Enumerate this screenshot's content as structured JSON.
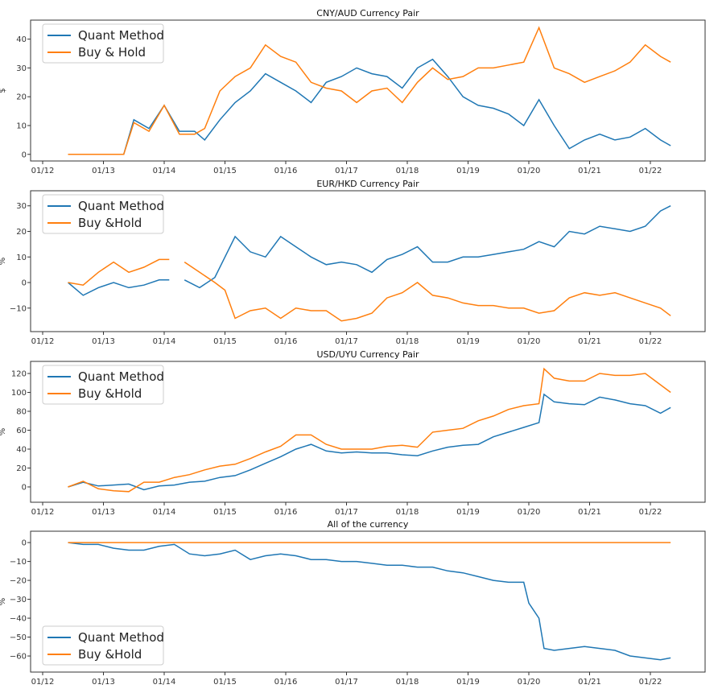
{
  "chart_data": [
    {
      "type": "line",
      "title": "CNY/AUD Currency Pair",
      "xlabel": "",
      "ylabel": "$",
      "ylim": [
        -2.3,
        46.6
      ],
      "yticks": [
        0,
        10,
        20,
        30,
        40
      ],
      "xticks": [
        "01/12",
        "01/13",
        "01/14",
        "01/15",
        "01/16",
        "01/17",
        "01/18",
        "01/19",
        "01/20",
        "01/21",
        "01/22"
      ],
      "legend_position": "top-left",
      "grid": false,
      "x": [
        "2012-06",
        "2013-05",
        "2013-07",
        "2013-10",
        "2014-01",
        "2014-04",
        "2014-07",
        "2014-09",
        "2014-12",
        "2015-03",
        "2015-06",
        "2015-09",
        "2015-12",
        "2016-03",
        "2016-06",
        "2016-09",
        "2016-12",
        "2017-03",
        "2017-06",
        "2017-09",
        "2017-12",
        "2018-03",
        "2018-06",
        "2018-09",
        "2018-12",
        "2019-03",
        "2019-06",
        "2019-09",
        "2019-12",
        "2020-03",
        "2020-06",
        "2020-09",
        "2020-12",
        "2021-03",
        "2021-06",
        "2021-09",
        "2021-12",
        "2022-03",
        "2022-05"
      ],
      "series": [
        {
          "name": "Quant Method",
          "color": "#1f77b4",
          "values": [
            0,
            0,
            12,
            9,
            17,
            8,
            8,
            5,
            12,
            18,
            22,
            28,
            25,
            22,
            18,
            25,
            27,
            30,
            28,
            27,
            23,
            30,
            33,
            27,
            20,
            17,
            16,
            14,
            10,
            19,
            10,
            2,
            5,
            7,
            5,
            6,
            9,
            5,
            3
          ]
        },
        {
          "name": "Buy & Hold",
          "color": "#ff7f0e",
          "values": [
            0,
            0,
            11,
            8,
            17,
            7,
            7,
            9,
            22,
            27,
            30,
            38,
            34,
            32,
            25,
            23,
            22,
            18,
            22,
            23,
            18,
            25,
            30,
            26,
            27,
            30,
            30,
            31,
            32,
            44,
            30,
            28,
            25,
            27,
            29,
            32,
            38,
            34,
            32
          ]
        }
      ]
    },
    {
      "type": "line",
      "title": "EUR/HKD Currency Pair",
      "xlabel": "",
      "ylabel": "%",
      "ylim": [
        -19.2,
        35.9
      ],
      "yticks": [
        -10,
        0,
        10,
        20,
        30
      ],
      "xticks": [
        "01/12",
        "01/13",
        "01/14",
        "01/15",
        "01/16",
        "01/17",
        "01/18",
        "01/19",
        "01/20",
        "01/21",
        "01/22"
      ],
      "legend_position": "top-left",
      "grid": false,
      "x": [
        "2012-06",
        "2012-09",
        "2012-12",
        "2013-03",
        "2013-06",
        "2013-09",
        "2013-12",
        "2014-02",
        "2014-04",
        "2014-05",
        "2014-08",
        "2014-11",
        "2015-01",
        "2015-03",
        "2015-06",
        "2015-09",
        "2015-12",
        "2016-03",
        "2016-06",
        "2016-09",
        "2016-12",
        "2017-03",
        "2017-06",
        "2017-09",
        "2017-12",
        "2018-03",
        "2018-06",
        "2018-09",
        "2018-12",
        "2019-03",
        "2019-06",
        "2019-09",
        "2019-12",
        "2020-03",
        "2020-06",
        "2020-09",
        "2020-12",
        "2021-03",
        "2021-06",
        "2021-09",
        "2021-12",
        "2022-03",
        "2022-05"
      ],
      "series": [
        {
          "name": "Quant Method",
          "color": "#1f77b4",
          "values": [
            0,
            -5,
            -2,
            0,
            -2,
            -1,
            1,
            1,
            null,
            1,
            -2,
            2,
            10,
            18,
            12,
            10,
            18,
            14,
            10,
            7,
            8,
            7,
            4,
            9,
            11,
            14,
            8,
            8,
            10,
            10,
            11,
            12,
            13,
            16,
            14,
            20,
            19,
            22,
            21,
            20,
            22,
            28,
            30
          ]
        },
        {
          "name": "Buy &Hold",
          "color": "#ff7f0e",
          "values": [
            0,
            -1,
            4,
            8,
            4,
            6,
            9,
            9,
            null,
            8,
            4,
            0,
            -3,
            -14,
            -11,
            -10,
            -14,
            -10,
            -11,
            -11,
            -15,
            -14,
            -12,
            -6,
            -4,
            0,
            -5,
            -6,
            -8,
            -9,
            -9,
            -10,
            -10,
            -12,
            -11,
            -6,
            -4,
            -5,
            -4,
            -6,
            -8,
            -10,
            -13
          ]
        }
      ]
    },
    {
      "type": "line",
      "title": "USD/UYU Currency Pair",
      "xlabel": "",
      "ylabel": "%",
      "ylim": [
        -16.2,
        132.8
      ],
      "yticks": [
        0,
        20,
        40,
        60,
        80,
        100,
        120
      ],
      "xticks": [
        "01/12",
        "01/13",
        "01/14",
        "01/15",
        "01/16",
        "01/17",
        "01/18",
        "01/19",
        "01/20",
        "01/21",
        "01/22"
      ],
      "legend_position": "top-left",
      "grid": false,
      "x": [
        "2012-06",
        "2012-09",
        "2012-12",
        "2013-03",
        "2013-06",
        "2013-09",
        "2013-12",
        "2014-03",
        "2014-06",
        "2014-09",
        "2014-12",
        "2015-03",
        "2015-06",
        "2015-09",
        "2015-12",
        "2016-03",
        "2016-06",
        "2016-09",
        "2016-12",
        "2017-03",
        "2017-06",
        "2017-09",
        "2017-12",
        "2018-03",
        "2018-06",
        "2018-09",
        "2018-12",
        "2019-03",
        "2019-06",
        "2019-09",
        "2019-12",
        "2020-03",
        "2020-04",
        "2020-06",
        "2020-09",
        "2020-12",
        "2021-03",
        "2021-06",
        "2021-09",
        "2021-12",
        "2022-03",
        "2022-05"
      ],
      "series": [
        {
          "name": "Quant Method",
          "color": "#1f77b4",
          "values": [
            0,
            5,
            1,
            2,
            3,
            -3,
            1,
            2,
            5,
            6,
            10,
            12,
            18,
            25,
            32,
            40,
            45,
            38,
            36,
            37,
            36,
            36,
            34,
            33,
            38,
            42,
            44,
            45,
            53,
            58,
            63,
            68,
            98,
            90,
            88,
            87,
            95,
            92,
            88,
            86,
            78,
            84
          ]
        },
        {
          "name": "Buy &Hold",
          "color": "#ff7f0e",
          "values": [
            0,
            6,
            -2,
            -4,
            -5,
            5,
            5,
            10,
            13,
            18,
            22,
            24,
            30,
            37,
            43,
            55,
            55,
            45,
            40,
            40,
            40,
            43,
            44,
            42,
            58,
            60,
            62,
            70,
            75,
            82,
            86,
            88,
            125,
            115,
            112,
            112,
            120,
            118,
            118,
            120,
            108,
            100
          ]
        }
      ]
    },
    {
      "type": "line",
      "title": "All of the currency",
      "xlabel": "",
      "ylabel": "%",
      "ylim": [
        -68.5,
        6
      ],
      "yticks": [
        0,
        -10,
        -20,
        -30,
        -40,
        -50,
        -60
      ],
      "xticks": [
        "01/12",
        "01/13",
        "01/14",
        "01/15",
        "01/16",
        "01/17",
        "01/18",
        "01/19",
        "01/20",
        "01/21",
        "01/22"
      ],
      "legend_position": "bottom-left",
      "grid": false,
      "x": [
        "2012-06",
        "2012-09",
        "2012-12",
        "2013-03",
        "2013-06",
        "2013-09",
        "2013-12",
        "2014-03",
        "2014-06",
        "2014-09",
        "2014-12",
        "2015-03",
        "2015-06",
        "2015-09",
        "2015-12",
        "2016-03",
        "2016-06",
        "2016-09",
        "2016-12",
        "2017-03",
        "2017-06",
        "2017-09",
        "2017-12",
        "2018-03",
        "2018-06",
        "2018-09",
        "2018-12",
        "2019-03",
        "2019-06",
        "2019-09",
        "2019-12",
        "2020-01",
        "2020-03",
        "2020-04",
        "2020-06",
        "2020-09",
        "2020-12",
        "2021-03",
        "2021-06",
        "2021-09",
        "2021-12",
        "2022-03",
        "2022-05"
      ],
      "series": [
        {
          "name": "Quant Method",
          "color": "#1f77b4",
          "values": [
            0,
            -1,
            -1,
            -3,
            -4,
            -4,
            -2,
            -1,
            -6,
            -7,
            -6,
            -4,
            -9,
            -7,
            -6,
            -7,
            -9,
            -9,
            -10,
            -10,
            -11,
            -12,
            -12,
            -13,
            -13,
            -15,
            -16,
            -18,
            -20,
            -21,
            -21,
            -32,
            -40,
            -56,
            -57,
            -56,
            -55,
            -56,
            -57,
            -60,
            -61,
            -62,
            -61
          ]
        },
        {
          "name": "Buy &Hold",
          "color": "#ff7f0e",
          "values": [
            0,
            0,
            0,
            0,
            0,
            0,
            0,
            0,
            0,
            0,
            0,
            0,
            0,
            0,
            0,
            0,
            0,
            0,
            0,
            0,
            0,
            0,
            0,
            0,
            0,
            0,
            0,
            0,
            0,
            0,
            0,
            0,
            0,
            0,
            0,
            0,
            0,
            0,
            0,
            0,
            0,
            0,
            0
          ]
        }
      ]
    }
  ]
}
